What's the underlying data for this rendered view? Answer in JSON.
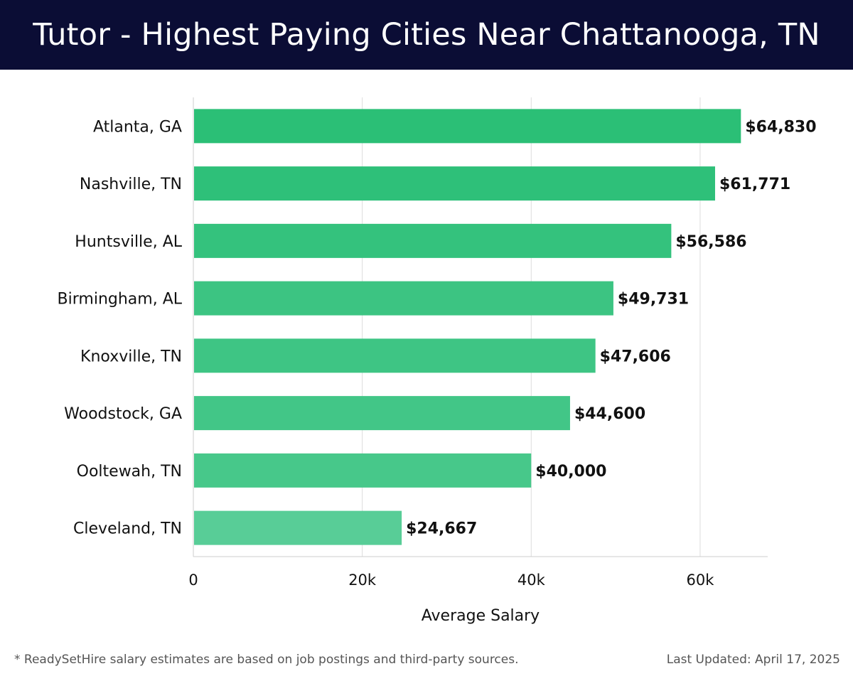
{
  "header": {
    "title": "Tutor - Highest Paying Cities Near Chattanooga, TN"
  },
  "chart_data": {
    "type": "bar",
    "orientation": "horizontal",
    "categories": [
      "Atlanta, GA",
      "Nashville, TN",
      "Huntsville, AL",
      "Birmingham, AL",
      "Knoxville, TN",
      "Woodstock, GA",
      "Ooltewah, TN",
      "Cleveland, TN"
    ],
    "values": [
      64830,
      61771,
      56586,
      49731,
      47606,
      44600,
      40000,
      24667
    ],
    "value_labels": [
      "$64,830",
      "$61,771",
      "$56,586",
      "$49,731",
      "$47,606",
      "$44,600",
      "$40,000",
      "$24,667"
    ],
    "xlabel": "Average Salary",
    "ylabel": "",
    "xlim": [
      0,
      68000
    ],
    "x_ticks": [
      0,
      20000,
      40000,
      60000
    ],
    "x_tick_labels": [
      "0",
      "20k",
      "40k",
      "60k"
    ],
    "grid": "vertical",
    "colors": {
      "bar_dark": "#2bbf76",
      "bar_light": "#58cd97",
      "grid": "#dddddd",
      "axis": "#cccccc",
      "text": "#111111"
    }
  },
  "footer": {
    "note": "* ReadySetHire salary estimates are based on job postings and third-party sources.",
    "last_updated": "Last Updated: April 17, 2025"
  }
}
